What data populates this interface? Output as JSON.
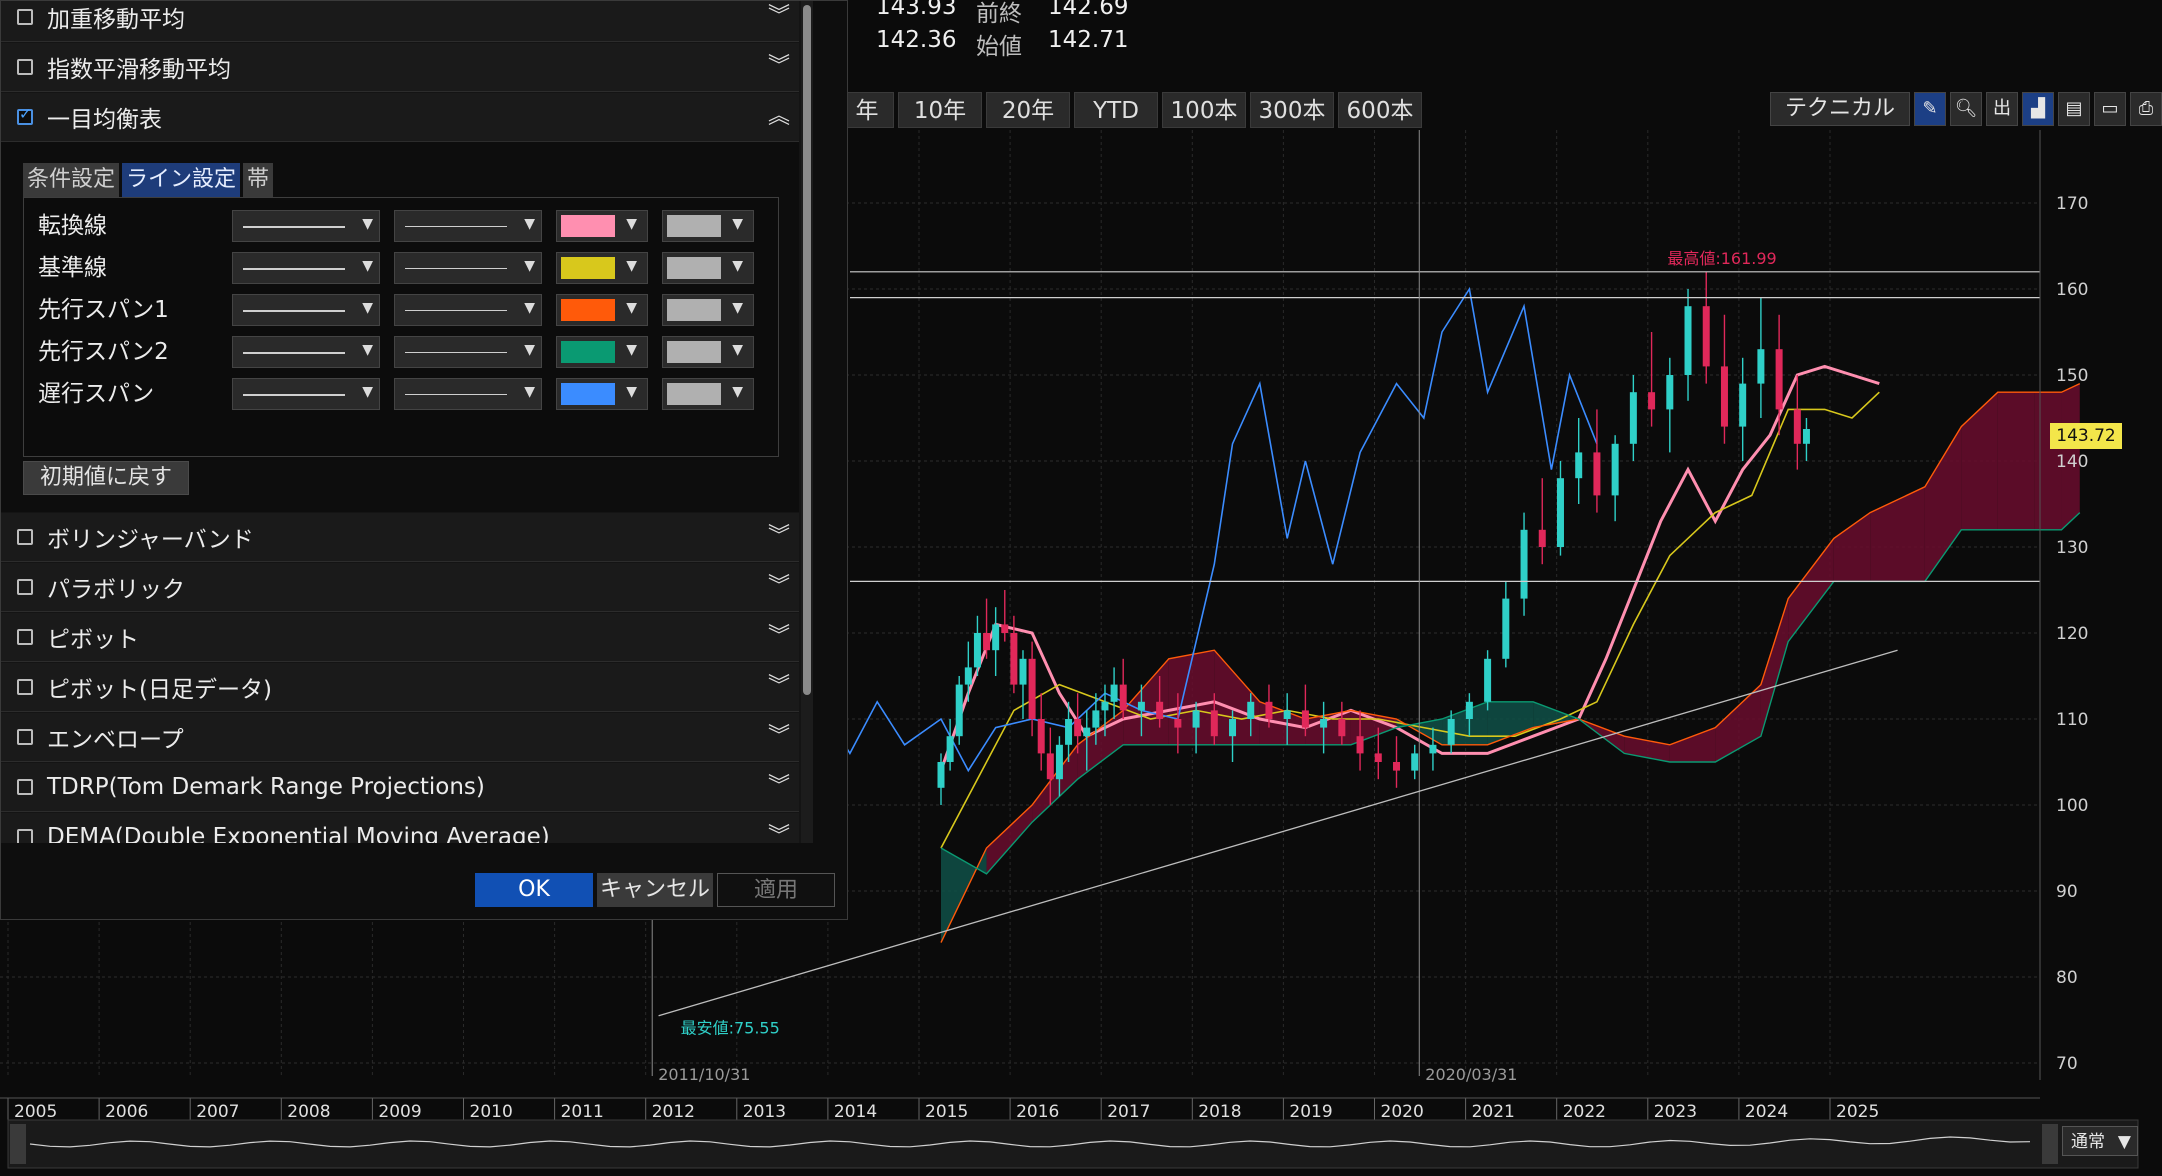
{
  "quote": {
    "row1_value": "143.93",
    "prev_label": "前終",
    "prev_value": "142.69",
    "row2_value": "142.36",
    "open_label": "始値",
    "open_value": "142.71"
  },
  "period_buttons": [
    "年",
    "10年",
    "20年",
    "YTD",
    "100本",
    "300本",
    "600本"
  ],
  "toolbar": {
    "technical_label": "テクニカル",
    "icons": [
      "pencil-icon",
      "zoom-icon",
      "output-icon",
      "chart-type-icon",
      "save-icon",
      "folder-icon",
      "print-icon"
    ]
  },
  "dialog": {
    "indicators_top": [
      {
        "label": "加重移動平均",
        "checked": false
      },
      {
        "label": "指数平滑移動平均",
        "checked": false
      },
      {
        "label": "一目均衡表",
        "checked": true
      }
    ],
    "tabs": [
      "条件設定",
      "ライン設定",
      "帯"
    ],
    "active_tab": "ライン設定",
    "line_settings": [
      {
        "name": "転換線",
        "color": "#ff8fb0"
      },
      {
        "name": "基準線",
        "color": "#d8c81c"
      },
      {
        "name": "先行スパン1",
        "color": "#ff5a0a"
      },
      {
        "name": "先行スパン2",
        "color": "#0a9a72"
      },
      {
        "name": "遅行スパン",
        "color": "#3b8cff"
      }
    ],
    "second_color": "#b0b0b0",
    "reset_label": "初期値に戻す",
    "indicators_bottom": [
      {
        "label": "ボリンジャーバンド",
        "checked": false
      },
      {
        "label": "パラボリック",
        "checked": false
      },
      {
        "label": "ピボット",
        "checked": false
      },
      {
        "label": "ピボット(日足データ)",
        "checked": false
      },
      {
        "label": "エンベロープ",
        "checked": false
      },
      {
        "label": "TDRP(Tom Demark Range Projections)",
        "checked": false
      },
      {
        "label": "DEMA(Double Exponential Moving Average)",
        "checked": false
      }
    ],
    "ok_label": "OK",
    "cancel_label": "キャンセル",
    "apply_label": "適用"
  },
  "chart_data": {
    "type": "candlestick",
    "y_ticks": [
      70,
      80,
      90,
      100,
      110,
      120,
      130,
      140,
      150,
      160,
      170
    ],
    "ylim": [
      65,
      175
    ],
    "x_ticks": [
      "2005",
      "2006",
      "2007",
      "2008",
      "2009",
      "2010",
      "2011",
      "2012",
      "2013",
      "2014",
      "2015",
      "2016",
      "2017",
      "2018",
      "2019",
      "2020",
      "2021",
      "2022",
      "2023",
      "2024",
      "2025"
    ],
    "current_price_label": "143.72",
    "current_price": 143.72,
    "high_annotation": "最高値:161.99",
    "high_value": 161.99,
    "low_annotation": "最安値:75.55",
    "low_value": 75.55,
    "crosshair_dates": [
      "2011/10/31",
      "2020/03/31"
    ],
    "horizontal_lines": [
      162,
      159,
      126
    ],
    "mode_label": "通常",
    "series": [
      {
        "name": "転換線",
        "values": [
          [
            2015.0,
            104
          ],
          [
            2015.3,
            113
          ],
          [
            2015.6,
            121
          ],
          [
            2016.0,
            120
          ],
          [
            2016.3,
            113
          ],
          [
            2016.6,
            108
          ],
          [
            2017.0,
            110
          ],
          [
            2017.5,
            111
          ],
          [
            2018.0,
            112
          ],
          [
            2018.5,
            110
          ],
          [
            2019.0,
            109
          ],
          [
            2019.5,
            111
          ],
          [
            2020.0,
            109
          ],
          [
            2020.5,
            106
          ],
          [
            2021.0,
            106
          ],
          [
            2021.5,
            108
          ],
          [
            2022.0,
            110
          ],
          [
            2022.3,
            117
          ],
          [
            2022.6,
            125
          ],
          [
            2022.9,
            133
          ],
          [
            2023.2,
            139
          ],
          [
            2023.5,
            133
          ],
          [
            2023.8,
            139
          ],
          [
            2024.1,
            143
          ],
          [
            2024.4,
            150
          ],
          [
            2024.7,
            151
          ],
          [
            2025.0,
            150
          ],
          [
            2025.3,
            149
          ]
        ]
      },
      {
        "name": "基準線",
        "values": [
          [
            2015.0,
            95
          ],
          [
            2015.4,
            103
          ],
          [
            2015.8,
            111
          ],
          [
            2016.3,
            114
          ],
          [
            2016.8,
            112
          ],
          [
            2017.3,
            110
          ],
          [
            2017.8,
            111
          ],
          [
            2018.3,
            110
          ],
          [
            2018.8,
            111
          ],
          [
            2019.3,
            110
          ],
          [
            2019.8,
            110
          ],
          [
            2020.3,
            109
          ],
          [
            2020.8,
            108
          ],
          [
            2021.3,
            108
          ],
          [
            2021.8,
            110
          ],
          [
            2022.2,
            112
          ],
          [
            2022.6,
            121
          ],
          [
            2023.0,
            129
          ],
          [
            2023.5,
            134
          ],
          [
            2023.9,
            136
          ],
          [
            2024.3,
            146
          ],
          [
            2024.7,
            146
          ],
          [
            2025.0,
            145
          ],
          [
            2025.3,
            148
          ]
        ]
      },
      {
        "name": "先行スパン1",
        "values": [
          [
            2015.0,
            84
          ],
          [
            2015.5,
            95
          ],
          [
            2016.0,
            100
          ],
          [
            2016.5,
            107
          ],
          [
            2017.0,
            111
          ],
          [
            2017.5,
            117
          ],
          [
            2018.0,
            118
          ],
          [
            2018.5,
            112
          ],
          [
            2019.0,
            110
          ],
          [
            2019.5,
            111
          ],
          [
            2020.0,
            110
          ],
          [
            2020.5,
            107
          ],
          [
            2021.0,
            107
          ],
          [
            2021.5,
            109
          ],
          [
            2022.0,
            110
          ],
          [
            2022.5,
            108
          ],
          [
            2023.0,
            107
          ],
          [
            2023.5,
            109
          ],
          [
            2024.0,
            114
          ],
          [
            2024.3,
            124
          ],
          [
            2024.8,
            131
          ],
          [
            2025.2,
            134
          ],
          [
            2025.8,
            137
          ],
          [
            2026.2,
            144
          ],
          [
            2026.6,
            148
          ],
          [
            2027.0,
            148
          ],
          [
            2027.3,
            148
          ],
          [
            2027.5,
            149
          ]
        ]
      },
      {
        "name": "先行スパン2",
        "values": [
          [
            2015.0,
            95
          ],
          [
            2015.5,
            92
          ],
          [
            2016.0,
            98
          ],
          [
            2016.5,
            103
          ],
          [
            2017.0,
            107
          ],
          [
            2017.5,
            107
          ],
          [
            2018.0,
            107
          ],
          [
            2018.5,
            107
          ],
          [
            2019.0,
            107
          ],
          [
            2019.5,
            107
          ],
          [
            2020.0,
            109
          ],
          [
            2020.5,
            110
          ],
          [
            2021.0,
            112
          ],
          [
            2021.5,
            112
          ],
          [
            2022.0,
            110
          ],
          [
            2022.5,
            106
          ],
          [
            2023.0,
            105
          ],
          [
            2023.5,
            105
          ],
          [
            2024.0,
            108
          ],
          [
            2024.3,
            119
          ],
          [
            2024.8,
            126
          ],
          [
            2025.2,
            126
          ],
          [
            2025.8,
            126
          ],
          [
            2026.2,
            132
          ],
          [
            2026.6,
            132
          ],
          [
            2027.0,
            132
          ],
          [
            2027.3,
            132
          ],
          [
            2027.5,
            134
          ]
        ]
      },
      {
        "name": "遅行スパン",
        "values": [
          [
            2012.5,
            110
          ],
          [
            2013.0,
            117
          ],
          [
            2013.3,
            109
          ],
          [
            2013.6,
            113
          ],
          [
            2014.0,
            106
          ],
          [
            2014.3,
            112
          ],
          [
            2014.6,
            107
          ],
          [
            2015.0,
            110
          ],
          [
            2015.3,
            104
          ],
          [
            2015.6,
            109
          ],
          [
            2016.0,
            110
          ],
          [
            2016.4,
            109
          ],
          [
            2016.8,
            113
          ],
          [
            2017.2,
            111
          ],
          [
            2017.6,
            110
          ],
          [
            2018.0,
            128
          ],
          [
            2018.2,
            142
          ],
          [
            2018.5,
            149
          ],
          [
            2018.8,
            131
          ],
          [
            2019.0,
            140
          ],
          [
            2019.3,
            128
          ],
          [
            2019.6,
            141
          ],
          [
            2020.0,
            149
          ],
          [
            2020.3,
            145
          ],
          [
            2020.5,
            155
          ],
          [
            2020.8,
            160
          ],
          [
            2021.0,
            148
          ],
          [
            2021.2,
            153
          ],
          [
            2021.4,
            158
          ],
          [
            2021.7,
            139
          ],
          [
            2021.9,
            150
          ],
          [
            2022.2,
            142
          ]
        ]
      }
    ],
    "candles": [
      [
        2015.0,
        102,
        106,
        100,
        105
      ],
      [
        2015.1,
        105,
        110,
        104,
        108
      ],
      [
        2015.2,
        108,
        115,
        107,
        114
      ],
      [
        2015.3,
        114,
        119,
        112,
        116
      ],
      [
        2015.4,
        116,
        122,
        115,
        120
      ],
      [
        2015.5,
        120,
        124,
        117,
        118
      ],
      [
        2015.6,
        118,
        123,
        115,
        121
      ],
      [
        2015.7,
        121,
        125,
        119,
        120
      ],
      [
        2015.8,
        120,
        122,
        113,
        114
      ],
      [
        2015.9,
        114,
        118,
        110,
        117
      ],
      [
        2016.0,
        117,
        119,
        108,
        110
      ],
      [
        2016.1,
        110,
        113,
        104,
        106
      ],
      [
        2016.2,
        106,
        109,
        100,
        103
      ],
      [
        2016.3,
        103,
        108,
        101,
        107
      ],
      [
        2016.4,
        107,
        112,
        105,
        110
      ],
      [
        2016.5,
        110,
        113,
        106,
        108
      ],
      [
        2016.6,
        108,
        111,
        104,
        109
      ],
      [
        2016.7,
        109,
        113,
        107,
        111
      ],
      [
        2016.8,
        111,
        114,
        108,
        112
      ],
      [
        2016.9,
        112,
        116,
        110,
        114
      ],
      [
        2017.0,
        114,
        117,
        110,
        111
      ],
      [
        2017.2,
        111,
        114,
        108,
        112
      ],
      [
        2017.4,
        112,
        115,
        109,
        110
      ],
      [
        2017.6,
        110,
        113,
        106,
        109
      ],
      [
        2017.8,
        109,
        112,
        106,
        111
      ],
      [
        2018.0,
        111,
        113,
        107,
        108
      ],
      [
        2018.2,
        108,
        111,
        105,
        110
      ],
      [
        2018.4,
        110,
        113,
        108,
        112
      ],
      [
        2018.6,
        112,
        114,
        109,
        110
      ],
      [
        2018.8,
        110,
        113,
        107,
        111
      ],
      [
        2019.0,
        111,
        114,
        108,
        109
      ],
      [
        2019.2,
        109,
        112,
        106,
        110
      ],
      [
        2019.4,
        110,
        112,
        107,
        108
      ],
      [
        2019.6,
        108,
        111,
        104,
        106
      ],
      [
        2019.8,
        106,
        109,
        103,
        105
      ],
      [
        2020.0,
        105,
        108,
        102,
        104
      ],
      [
        2020.2,
        104,
        107,
        103,
        106
      ],
      [
        2020.4,
        106,
        109,
        104,
        107
      ],
      [
        2020.6,
        107,
        111,
        106,
        110
      ],
      [
        2020.8,
        110,
        113,
        108,
        112
      ],
      [
        2021.0,
        112,
        118,
        111,
        117
      ],
      [
        2021.2,
        117,
        126,
        116,
        124
      ],
      [
        2021.4,
        124,
        134,
        122,
        132
      ],
      [
        2021.6,
        132,
        138,
        128,
        130
      ],
      [
        2021.8,
        130,
        140,
        129,
        138
      ],
      [
        2022.0,
        138,
        145,
        135,
        141
      ],
      [
        2022.2,
        141,
        146,
        134,
        136
      ],
      [
        2022.4,
        136,
        143,
        133,
        142
      ],
      [
        2022.6,
        142,
        150,
        140,
        148
      ],
      [
        2022.8,
        148,
        155,
        144,
        146
      ],
      [
        2023.0,
        146,
        152,
        141,
        150
      ],
      [
        2023.2,
        150,
        160,
        147,
        158
      ],
      [
        2023.4,
        158,
        162,
        149,
        151
      ],
      [
        2023.6,
        151,
        157,
        142,
        144
      ],
      [
        2023.8,
        144,
        152,
        140,
        149
      ],
      [
        2024.0,
        149,
        159,
        145,
        153
      ],
      [
        2024.2,
        153,
        157,
        143,
        146
      ],
      [
        2024.4,
        146,
        150,
        139,
        142
      ],
      [
        2024.5,
        142,
        145,
        140,
        143.72
      ]
    ]
  }
}
